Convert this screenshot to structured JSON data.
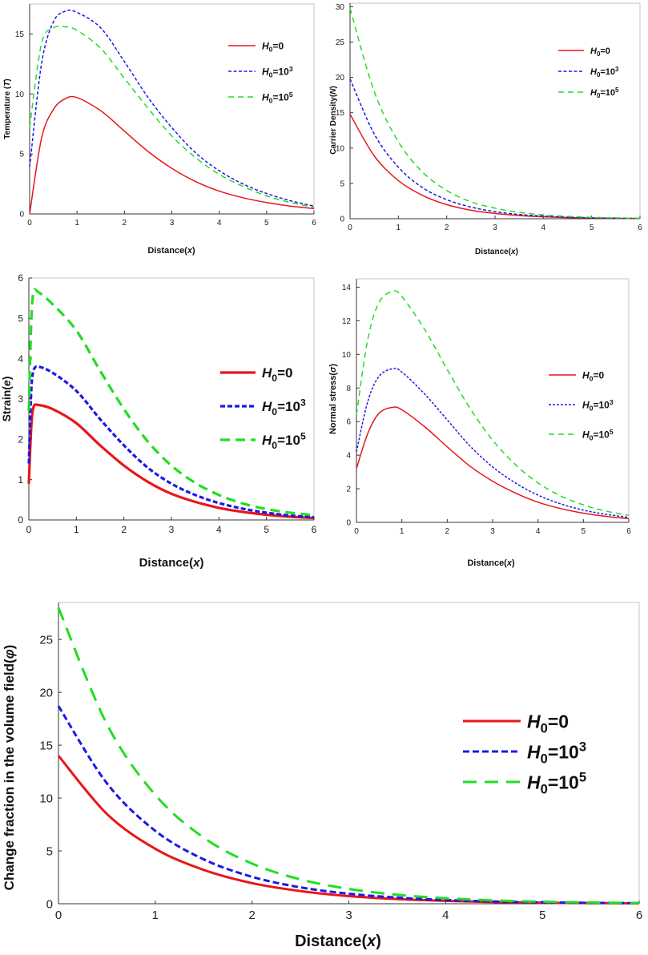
{
  "figure": {
    "legend_labels": {
      "h0_0": {
        "sym": "H",
        "sub": "0",
        "rest": "=0",
        "sup": ""
      },
      "h0_1e3": {
        "sym": "H",
        "sub": "0",
        "rest": "=10",
        "sup": "3"
      },
      "h0_1e5": {
        "sym": "H",
        "sub": "0",
        "rest": "=10",
        "sup": "5"
      }
    },
    "series_colors": {
      "h0_0": "#e8161b",
      "h0_1e3": "#1a1ae6",
      "h0_1e5": "#22dd22"
    }
  },
  "chart_data": [
    {
      "type": "line",
      "title": "",
      "xlabel": "Distance(x)",
      "xlabel_pre": "Distance(",
      "xlabel_var": "x",
      "xlabel_post": ")",
      "ylabel": "Temperature (T)",
      "ylabel_pre": "Temperature (",
      "ylabel_var": "T",
      "ylabel_post": ")",
      "xlim": [
        0,
        6
      ],
      "ylim": [
        0,
        17.5
      ],
      "x_ticks": [
        "0",
        "1",
        "2",
        "3",
        "4",
        "5",
        "6"
      ],
      "y_ticks": [
        "0",
        "5",
        "10",
        "15"
      ],
      "legend_position": "top-right",
      "x": [
        0,
        0.25,
        0.5,
        0.75,
        1,
        1.5,
        2,
        2.5,
        3,
        3.5,
        4,
        4.5,
        5,
        5.5,
        6
      ],
      "series": [
        {
          "name": "H0=0",
          "key": "h0_0",
          "values": [
            0,
            6.3,
            8.7,
            9.6,
            9.7,
            8.6,
            6.9,
            5.2,
            3.8,
            2.7,
            1.9,
            1.35,
            0.95,
            0.65,
            0.45
          ]
        },
        {
          "name": "H0=10^3",
          "key": "h0_1e3",
          "values": [
            3.9,
            12.5,
            16.0,
            16.9,
            16.8,
            15.5,
            12.7,
            9.7,
            7.2,
            5.1,
            3.6,
            2.5,
            1.7,
            1.1,
            0.65
          ]
        },
        {
          "name": "H0=10^5",
          "key": "h0_1e5",
          "values": [
            7.2,
            14.2,
            15.5,
            15.6,
            15.3,
            13.8,
            11.3,
            8.8,
            6.5,
            4.7,
            3.3,
            2.3,
            1.5,
            0.95,
            0.55
          ]
        }
      ]
    },
    {
      "type": "line",
      "title": "",
      "xlabel": "Distance(x)",
      "xlabel_pre": "Distance(",
      "xlabel_var": "x",
      "xlabel_post": ")",
      "ylabel": "Carrier Density(N)",
      "ylabel_pre": "Carrier Density(",
      "ylabel_var": "N",
      "ylabel_post": ")",
      "xlim": [
        0,
        6
      ],
      "ylim": [
        0,
        30.5
      ],
      "x_ticks": [
        "0",
        "1",
        "2",
        "3",
        "4",
        "5",
        "6"
      ],
      "y_ticks": [
        "0",
        "5",
        "10",
        "15",
        "20",
        "25",
        "30"
      ],
      "legend_position": "top-right",
      "x": [
        0,
        0.5,
        1,
        1.5,
        2,
        2.5,
        3,
        3.5,
        4,
        4.5,
        5,
        5.5,
        6
      ],
      "series": [
        {
          "name": "H0=0",
          "key": "h0_0",
          "values": [
            14.8,
            8.9,
            5.4,
            3.3,
            2.0,
            1.2,
            0.75,
            0.45,
            0.27,
            0.16,
            0.1,
            0.06,
            0.04
          ]
        },
        {
          "name": "H0=10^3",
          "key": "h0_1e3",
          "values": [
            19.8,
            12.0,
            7.3,
            4.4,
            2.7,
            1.65,
            1.0,
            0.6,
            0.37,
            0.22,
            0.13,
            0.08,
            0.05
          ]
        },
        {
          "name": "H0=10^5",
          "key": "h0_1e5",
          "values": [
            29.8,
            18.0,
            10.9,
            6.6,
            4.0,
            2.4,
            1.5,
            0.9,
            0.55,
            0.33,
            0.2,
            0.12,
            0.07
          ]
        }
      ]
    },
    {
      "type": "line",
      "title": "",
      "xlabel": "Distance(x)",
      "xlabel_pre": "Distance(",
      "xlabel_var": "x",
      "xlabel_post": ")",
      "ylabel": "Strain(e)",
      "ylabel_pre": "Strain(",
      "ylabel_var": "e",
      "ylabel_post": ")",
      "xlim": [
        0,
        6
      ],
      "ylim": [
        0,
        6
      ],
      "x_ticks": [
        "0",
        "1",
        "2",
        "3",
        "4",
        "5",
        "6"
      ],
      "y_ticks": [
        "0",
        "1",
        "2",
        "3",
        "4",
        "5",
        "6"
      ],
      "legend_position": "right",
      "x": [
        0,
        0.05,
        0.1,
        0.2,
        0.5,
        1,
        1.5,
        2,
        2.5,
        3,
        3.5,
        4,
        4.5,
        5,
        5.5,
        6
      ],
      "series": [
        {
          "name": "H0=0",
          "key": "h0_0",
          "values": [
            0.9,
            2.3,
            2.8,
            2.85,
            2.75,
            2.4,
            1.85,
            1.35,
            0.95,
            0.65,
            0.45,
            0.3,
            0.2,
            0.13,
            0.08,
            0.05
          ]
        },
        {
          "name": "H0=10^3",
          "key": "h0_1e3",
          "values": [
            1.4,
            3.2,
            3.7,
            3.8,
            3.65,
            3.2,
            2.5,
            1.85,
            1.3,
            0.9,
            0.62,
            0.42,
            0.28,
            0.18,
            0.11,
            0.07
          ]
        },
        {
          "name": "H0=10^5",
          "key": "h0_1e5",
          "values": [
            2.7,
            4.9,
            5.65,
            5.65,
            5.35,
            4.7,
            3.7,
            2.75,
            1.95,
            1.35,
            0.92,
            0.62,
            0.41,
            0.27,
            0.18,
            0.12
          ]
        }
      ]
    },
    {
      "type": "line",
      "title": "",
      "xlabel": "Distance(x)",
      "xlabel_pre": "Distance(",
      "xlabel_var": "x",
      "xlabel_post": ")",
      "ylabel": "Normal stress(σ)",
      "ylabel_pre": "Normal stress(",
      "ylabel_var": "σ",
      "ylabel_post": ")",
      "xlim": [
        0,
        6
      ],
      "ylim": [
        0,
        14.5
      ],
      "x_ticks": [
        "0",
        "1",
        "2",
        "3",
        "4",
        "5",
        "6"
      ],
      "y_ticks": [
        "0",
        "2",
        "4",
        "6",
        "8",
        "10",
        "12",
        "14"
      ],
      "legend_position": "right",
      "x": [
        0,
        0.25,
        0.5,
        0.8,
        1,
        1.5,
        2,
        2.5,
        3,
        3.5,
        4,
        4.5,
        5,
        5.5,
        6
      ],
      "series": [
        {
          "name": "H0=0",
          "key": "h0_0",
          "values": [
            3.2,
            5.3,
            6.5,
            6.85,
            6.7,
            5.7,
            4.5,
            3.35,
            2.45,
            1.75,
            1.2,
            0.82,
            0.55,
            0.36,
            0.22
          ]
        },
        {
          "name": "H0=10^3",
          "key": "h0_1e3",
          "values": [
            4.2,
            7.2,
            8.7,
            9.15,
            8.95,
            7.65,
            6.1,
            4.55,
            3.3,
            2.35,
            1.62,
            1.1,
            0.73,
            0.48,
            0.3
          ]
        },
        {
          "name": "H0=10^5",
          "key": "h0_1e5",
          "values": [
            6.4,
            10.9,
            13.1,
            13.75,
            13.45,
            11.5,
            9.1,
            6.8,
            4.9,
            3.45,
            2.35,
            1.58,
            1.04,
            0.67,
            0.42
          ]
        }
      ]
    },
    {
      "type": "line",
      "title": "",
      "xlabel": "Distance(x)",
      "xlabel_pre": "Distance(",
      "xlabel_var": "x",
      "xlabel_post": ")",
      "ylabel": "Change fraction in the volume field(φ)",
      "ylabel_pre": "Change fraction in the volume field(",
      "ylabel_var": "φ",
      "ylabel_post": ")",
      "xlim": [
        0,
        6
      ],
      "ylim": [
        0,
        28.5
      ],
      "x_ticks": [
        "0",
        "1",
        "2",
        "3",
        "4",
        "5",
        "6"
      ],
      "y_ticks": [
        "0",
        "5",
        "10",
        "15",
        "20",
        "25"
      ],
      "legend_position": "right",
      "x": [
        0,
        0.5,
        1,
        1.5,
        2,
        2.5,
        3,
        3.5,
        4,
        4.5,
        5,
        5.5,
        6
      ],
      "series": [
        {
          "name": "H0=0",
          "key": "h0_0",
          "values": [
            14.0,
            8.5,
            5.2,
            3.2,
            1.95,
            1.2,
            0.72,
            0.44,
            0.27,
            0.16,
            0.1,
            0.06,
            0.04
          ]
        },
        {
          "name": "H0=10^3",
          "key": "h0_1e3",
          "values": [
            18.7,
            11.4,
            6.9,
            4.2,
            2.55,
            1.55,
            0.95,
            0.58,
            0.35,
            0.21,
            0.13,
            0.08,
            0.05
          ]
        },
        {
          "name": "H0=10^5",
          "key": "h0_1e5",
          "values": [
            28.0,
            17.0,
            10.3,
            6.25,
            3.8,
            2.3,
            1.4,
            0.85,
            0.52,
            0.31,
            0.19,
            0.12,
            0.07
          ]
        }
      ]
    }
  ]
}
